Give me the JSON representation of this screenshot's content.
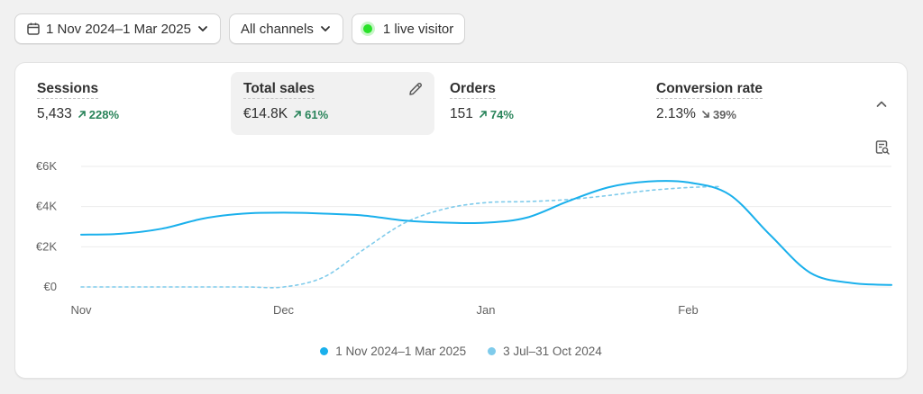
{
  "filters": {
    "date_range": "1 Nov 2024–1 Mar 2025",
    "channels": "All channels",
    "live_visitors": "1 live visitor"
  },
  "metrics": [
    {
      "label": "Sessions",
      "value": "5,433",
      "delta": "228%",
      "direction": "up"
    },
    {
      "label": "Total sales",
      "value": "€14.8K",
      "delta": "61%",
      "direction": "up",
      "selected": true
    },
    {
      "label": "Orders",
      "value": "151",
      "delta": "74%",
      "direction": "up"
    },
    {
      "label": "Conversion rate",
      "value": "2.13%",
      "delta": "39%",
      "direction": "down"
    }
  ],
  "icons": {
    "calendar": "calendar-icon",
    "chevron": "chevron-down-icon",
    "edit": "pencil-icon",
    "collapse": "chevron-up-icon",
    "report": "report-search-icon"
  },
  "colors": {
    "current_series": "#1ab0ec",
    "previous_series": "#7fcbeb",
    "up": "#29845a",
    "down": "#616161",
    "live": "#29e229"
  },
  "chart_data": {
    "type": "line",
    "x_ticks": [
      "Nov",
      "Dec",
      "Jan",
      "Feb"
    ],
    "y_ticks": [
      "€0",
      "€2K",
      "€4K",
      "€6K"
    ],
    "ylim": [
      0,
      6000
    ],
    "series": [
      {
        "name": "1 Nov 2024–1 Mar 2025",
        "style": "solid",
        "points": [
          [
            0,
            2600
          ],
          [
            0.25,
            2650
          ],
          [
            0.5,
            2900
          ],
          [
            0.75,
            3400
          ],
          [
            1.0,
            3650
          ],
          [
            1.25,
            3700
          ],
          [
            1.5,
            3650
          ],
          [
            1.75,
            3550
          ],
          [
            2.0,
            3300
          ],
          [
            2.25,
            3200
          ],
          [
            2.5,
            3200
          ],
          [
            2.75,
            3450
          ],
          [
            3.0,
            4250
          ],
          [
            3.25,
            4950
          ],
          [
            3.5,
            5250
          ],
          [
            3.75,
            5200
          ],
          [
            4.0,
            4600
          ],
          [
            4.25,
            2600
          ],
          [
            4.5,
            700
          ],
          [
            4.75,
            200
          ],
          [
            5.0,
            100
          ]
        ]
      },
      {
        "name": "3 Jul–31 Oct 2024",
        "style": "dashed",
        "points": [
          [
            0,
            0
          ],
          [
            0.5,
            0
          ],
          [
            1.0,
            0
          ],
          [
            1.25,
            0
          ],
          [
            1.5,
            500
          ],
          [
            1.75,
            1900
          ],
          [
            2.0,
            3200
          ],
          [
            2.25,
            3900
          ],
          [
            2.5,
            4200
          ],
          [
            2.75,
            4250
          ],
          [
            3.0,
            4350
          ],
          [
            3.25,
            4550
          ],
          [
            3.5,
            4800
          ],
          [
            3.75,
            4950
          ],
          [
            3.95,
            5000
          ]
        ]
      }
    ]
  }
}
